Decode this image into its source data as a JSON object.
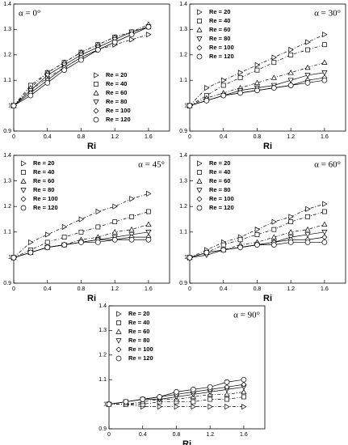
{
  "chart_data": [
    {
      "type": "line",
      "annotation": "α = 0°",
      "x_label": "Ri",
      "legend": "lower right",
      "x": [
        0,
        0.2,
        0.4,
        0.6,
        0.8,
        1.0,
        1.2,
        1.4,
        1.6
      ],
      "xlim": [
        0,
        1.85
      ],
      "xticks": [
        0,
        0.4,
        0.8,
        1.2,
        1.6
      ],
      "ylim": [
        0.9,
        1.4
      ],
      "yticks": [
        0.9,
        1,
        1.1,
        1.2,
        1.3,
        1.4
      ],
      "series": [
        {
          "name": "Re = 20",
          "marker": "triangle-right",
          "color": "#000",
          "values": [
            1.0,
            1.06,
            1.11,
            1.15,
            1.19,
            1.22,
            1.24,
            1.26,
            1.28
          ]
        },
        {
          "name": "Re = 40",
          "marker": "square",
          "color": "#000",
          "values": [
            1.0,
            1.08,
            1.13,
            1.17,
            1.21,
            1.24,
            1.27,
            1.29,
            1.31
          ]
        },
        {
          "name": "Re = 60",
          "marker": "triangle-up",
          "color": "#000",
          "values": [
            1.0,
            1.07,
            1.13,
            1.17,
            1.21,
            1.24,
            1.27,
            1.29,
            1.32
          ]
        },
        {
          "name": "Re = 80",
          "marker": "triangle-down",
          "color": "#000",
          "values": [
            1.0,
            1.06,
            1.12,
            1.16,
            1.2,
            1.23,
            1.26,
            1.29,
            1.31
          ]
        },
        {
          "name": "Re = 100",
          "marker": "diamond",
          "color": "#000",
          "values": [
            1.0,
            1.05,
            1.1,
            1.15,
            1.19,
            1.22,
            1.25,
            1.28,
            1.31
          ]
        },
        {
          "name": "Re = 120",
          "marker": "circle",
          "color": "#000",
          "values": [
            1.0,
            1.04,
            1.09,
            1.14,
            1.18,
            1.22,
            1.25,
            1.28,
            1.31
          ]
        }
      ]
    },
    {
      "type": "line",
      "annotation": "α = 30°",
      "x_label": "Ri",
      "legend": "upper left",
      "x": [
        0,
        0.2,
        0.4,
        0.6,
        0.8,
        1.0,
        1.2,
        1.4,
        1.6
      ],
      "xlim": [
        0,
        1.85
      ],
      "xticks": [
        0,
        0.4,
        0.8,
        1.2,
        1.6
      ],
      "ylim": [
        0.9,
        1.4
      ],
      "yticks": [
        0.9,
        1,
        1.1,
        1.2,
        1.3,
        1.4
      ],
      "series": [
        {
          "name": "Re = 20",
          "marker": "triangle-right",
          "color": "#000",
          "values": [
            1.0,
            1.07,
            1.1,
            1.13,
            1.16,
            1.19,
            1.22,
            1.25,
            1.28
          ]
        },
        {
          "name": "Re = 40",
          "marker": "square",
          "color": "#000",
          "values": [
            1.0,
            1.04,
            1.08,
            1.11,
            1.14,
            1.17,
            1.2,
            1.22,
            1.24
          ]
        },
        {
          "name": "Re = 60",
          "marker": "triangle-up",
          "color": "#000",
          "values": [
            1.0,
            1.03,
            1.05,
            1.07,
            1.09,
            1.11,
            1.13,
            1.15,
            1.17
          ]
        },
        {
          "name": "Re = 80",
          "marker": "triangle-down",
          "color": "#000",
          "values": [
            1.0,
            1.02,
            1.04,
            1.06,
            1.07,
            1.08,
            1.1,
            1.12,
            1.13
          ]
        },
        {
          "name": "Re = 100",
          "marker": "diamond",
          "color": "#000",
          "values": [
            1.0,
            1.02,
            1.04,
            1.05,
            1.06,
            1.07,
            1.08,
            1.1,
            1.11
          ]
        },
        {
          "name": "Re = 120",
          "marker": "circle",
          "color": "#000",
          "values": [
            1.0,
            1.02,
            1.04,
            1.05,
            1.06,
            1.07,
            1.08,
            1.09,
            1.1
          ]
        }
      ]
    },
    {
      "type": "line",
      "annotation": "α = 45°",
      "x_label": "Ri",
      "legend": "upper left",
      "x": [
        0,
        0.2,
        0.4,
        0.6,
        0.8,
        1.0,
        1.2,
        1.4,
        1.6
      ],
      "xlim": [
        0,
        1.85
      ],
      "xticks": [
        0,
        0.4,
        0.8,
        1.2,
        1.6
      ],
      "ylim": [
        0.9,
        1.4
      ],
      "yticks": [
        0.9,
        1,
        1.1,
        1.2,
        1.3,
        1.4
      ],
      "series": [
        {
          "name": "Re = 20",
          "marker": "triangle-right",
          "color": "#000",
          "values": [
            1.0,
            1.06,
            1.09,
            1.12,
            1.15,
            1.18,
            1.2,
            1.23,
            1.25
          ]
        },
        {
          "name": "Re = 40",
          "marker": "square",
          "color": "#000",
          "values": [
            1.0,
            1.03,
            1.06,
            1.08,
            1.1,
            1.12,
            1.14,
            1.16,
            1.18
          ]
        },
        {
          "name": "Re = 60",
          "marker": "triangle-up",
          "color": "#000",
          "values": [
            1.0,
            1.02,
            1.04,
            1.05,
            1.07,
            1.08,
            1.1,
            1.11,
            1.13
          ]
        },
        {
          "name": "Re = 80",
          "marker": "triangle-down",
          "color": "#000",
          "values": [
            1.0,
            1.02,
            1.04,
            1.05,
            1.06,
            1.07,
            1.08,
            1.09,
            1.1
          ]
        },
        {
          "name": "Re = 100",
          "marker": "diamond",
          "color": "#000",
          "values": [
            1.0,
            1.02,
            1.04,
            1.05,
            1.06,
            1.07,
            1.07,
            1.08,
            1.08
          ]
        },
        {
          "name": "Re = 120",
          "marker": "circle",
          "color": "#000",
          "values": [
            1.0,
            1.02,
            1.04,
            1.05,
            1.06,
            1.06,
            1.07,
            1.07,
            1.07
          ]
        }
      ]
    },
    {
      "type": "line",
      "annotation": "α = 60°",
      "x_label": "Ri",
      "legend": "upper left",
      "x": [
        0,
        0.2,
        0.4,
        0.6,
        0.8,
        1.0,
        1.2,
        1.4,
        1.6
      ],
      "xlim": [
        0,
        1.85
      ],
      "xticks": [
        0,
        0.4,
        0.8,
        1.2,
        1.6
      ],
      "ylim": [
        0.9,
        1.4
      ],
      "yticks": [
        0.9,
        1,
        1.1,
        1.2,
        1.3,
        1.4
      ],
      "series": [
        {
          "name": "Re = 20",
          "marker": "triangle-right",
          "color": "#000",
          "values": [
            1.0,
            1.03,
            1.06,
            1.08,
            1.11,
            1.14,
            1.16,
            1.19,
            1.21
          ]
        },
        {
          "name": "Re = 40",
          "marker": "square",
          "color": "#000",
          "values": [
            1.0,
            1.02,
            1.05,
            1.07,
            1.09,
            1.11,
            1.14,
            1.16,
            1.18
          ]
        },
        {
          "name": "Re = 60",
          "marker": "triangle-up",
          "color": "#000",
          "values": [
            1.0,
            1.02,
            1.03,
            1.05,
            1.06,
            1.08,
            1.1,
            1.11,
            1.13
          ]
        },
        {
          "name": "Re = 80",
          "marker": "triangle-down",
          "color": "#000",
          "values": [
            1.0,
            1.01,
            1.03,
            1.04,
            1.05,
            1.06,
            1.08,
            1.09,
            1.1
          ]
        },
        {
          "name": "Re = 100",
          "marker": "diamond",
          "color": "#000",
          "values": [
            1.0,
            1.02,
            1.03,
            1.04,
            1.05,
            1.06,
            1.07,
            1.07,
            1.08
          ]
        },
        {
          "name": "Re = 120",
          "marker": "circle",
          "color": "#000",
          "values": [
            1.0,
            1.02,
            1.03,
            1.04,
            1.05,
            1.05,
            1.06,
            1.06,
            1.06
          ]
        }
      ]
    },
    {
      "type": "line",
      "annotation": "α = 90°",
      "x_label": "Ri",
      "legend": "upper left",
      "x": [
        0,
        0.2,
        0.4,
        0.6,
        0.8,
        1.0,
        1.2,
        1.4,
        1.6
      ],
      "xlim": [
        0,
        1.85
      ],
      "xticks": [
        0,
        0.4,
        0.8,
        1.2,
        1.6
      ],
      "ylim": [
        0.9,
        1.4
      ],
      "yticks": [
        0.9,
        1,
        1.1,
        1.2,
        1.3,
        1.4
      ],
      "series": [
        {
          "name": "Re = 20",
          "marker": "triangle-right",
          "color": "#000",
          "values": [
            1.0,
            1.0,
            0.99,
            0.99,
            0.99,
            0.99,
            0.99,
            0.99,
            0.99
          ]
        },
        {
          "name": "Re = 40",
          "marker": "square",
          "color": "#000",
          "values": [
            1.0,
            1.0,
            1.0,
            1.01,
            1.01,
            1.01,
            1.02,
            1.02,
            1.03
          ]
        },
        {
          "name": "Re = 60",
          "marker": "triangle-up",
          "color": "#000",
          "values": [
            1.0,
            1.0,
            1.01,
            1.02,
            1.02,
            1.03,
            1.04,
            1.04,
            1.05
          ]
        },
        {
          "name": "Re = 80",
          "marker": "triangle-down",
          "color": "#000",
          "values": [
            1.0,
            1.01,
            1.02,
            1.02,
            1.03,
            1.04,
            1.05,
            1.06,
            1.07
          ]
        },
        {
          "name": "Re = 100",
          "marker": "diamond",
          "color": "#000",
          "values": [
            1.0,
            1.01,
            1.02,
            1.03,
            1.04,
            1.05,
            1.06,
            1.07,
            1.08
          ]
        },
        {
          "name": "Re = 120",
          "marker": "circle",
          "color": "#000",
          "values": [
            1.0,
            1.01,
            1.02,
            1.03,
            1.05,
            1.06,
            1.07,
            1.09,
            1.1
          ]
        }
      ]
    }
  ]
}
